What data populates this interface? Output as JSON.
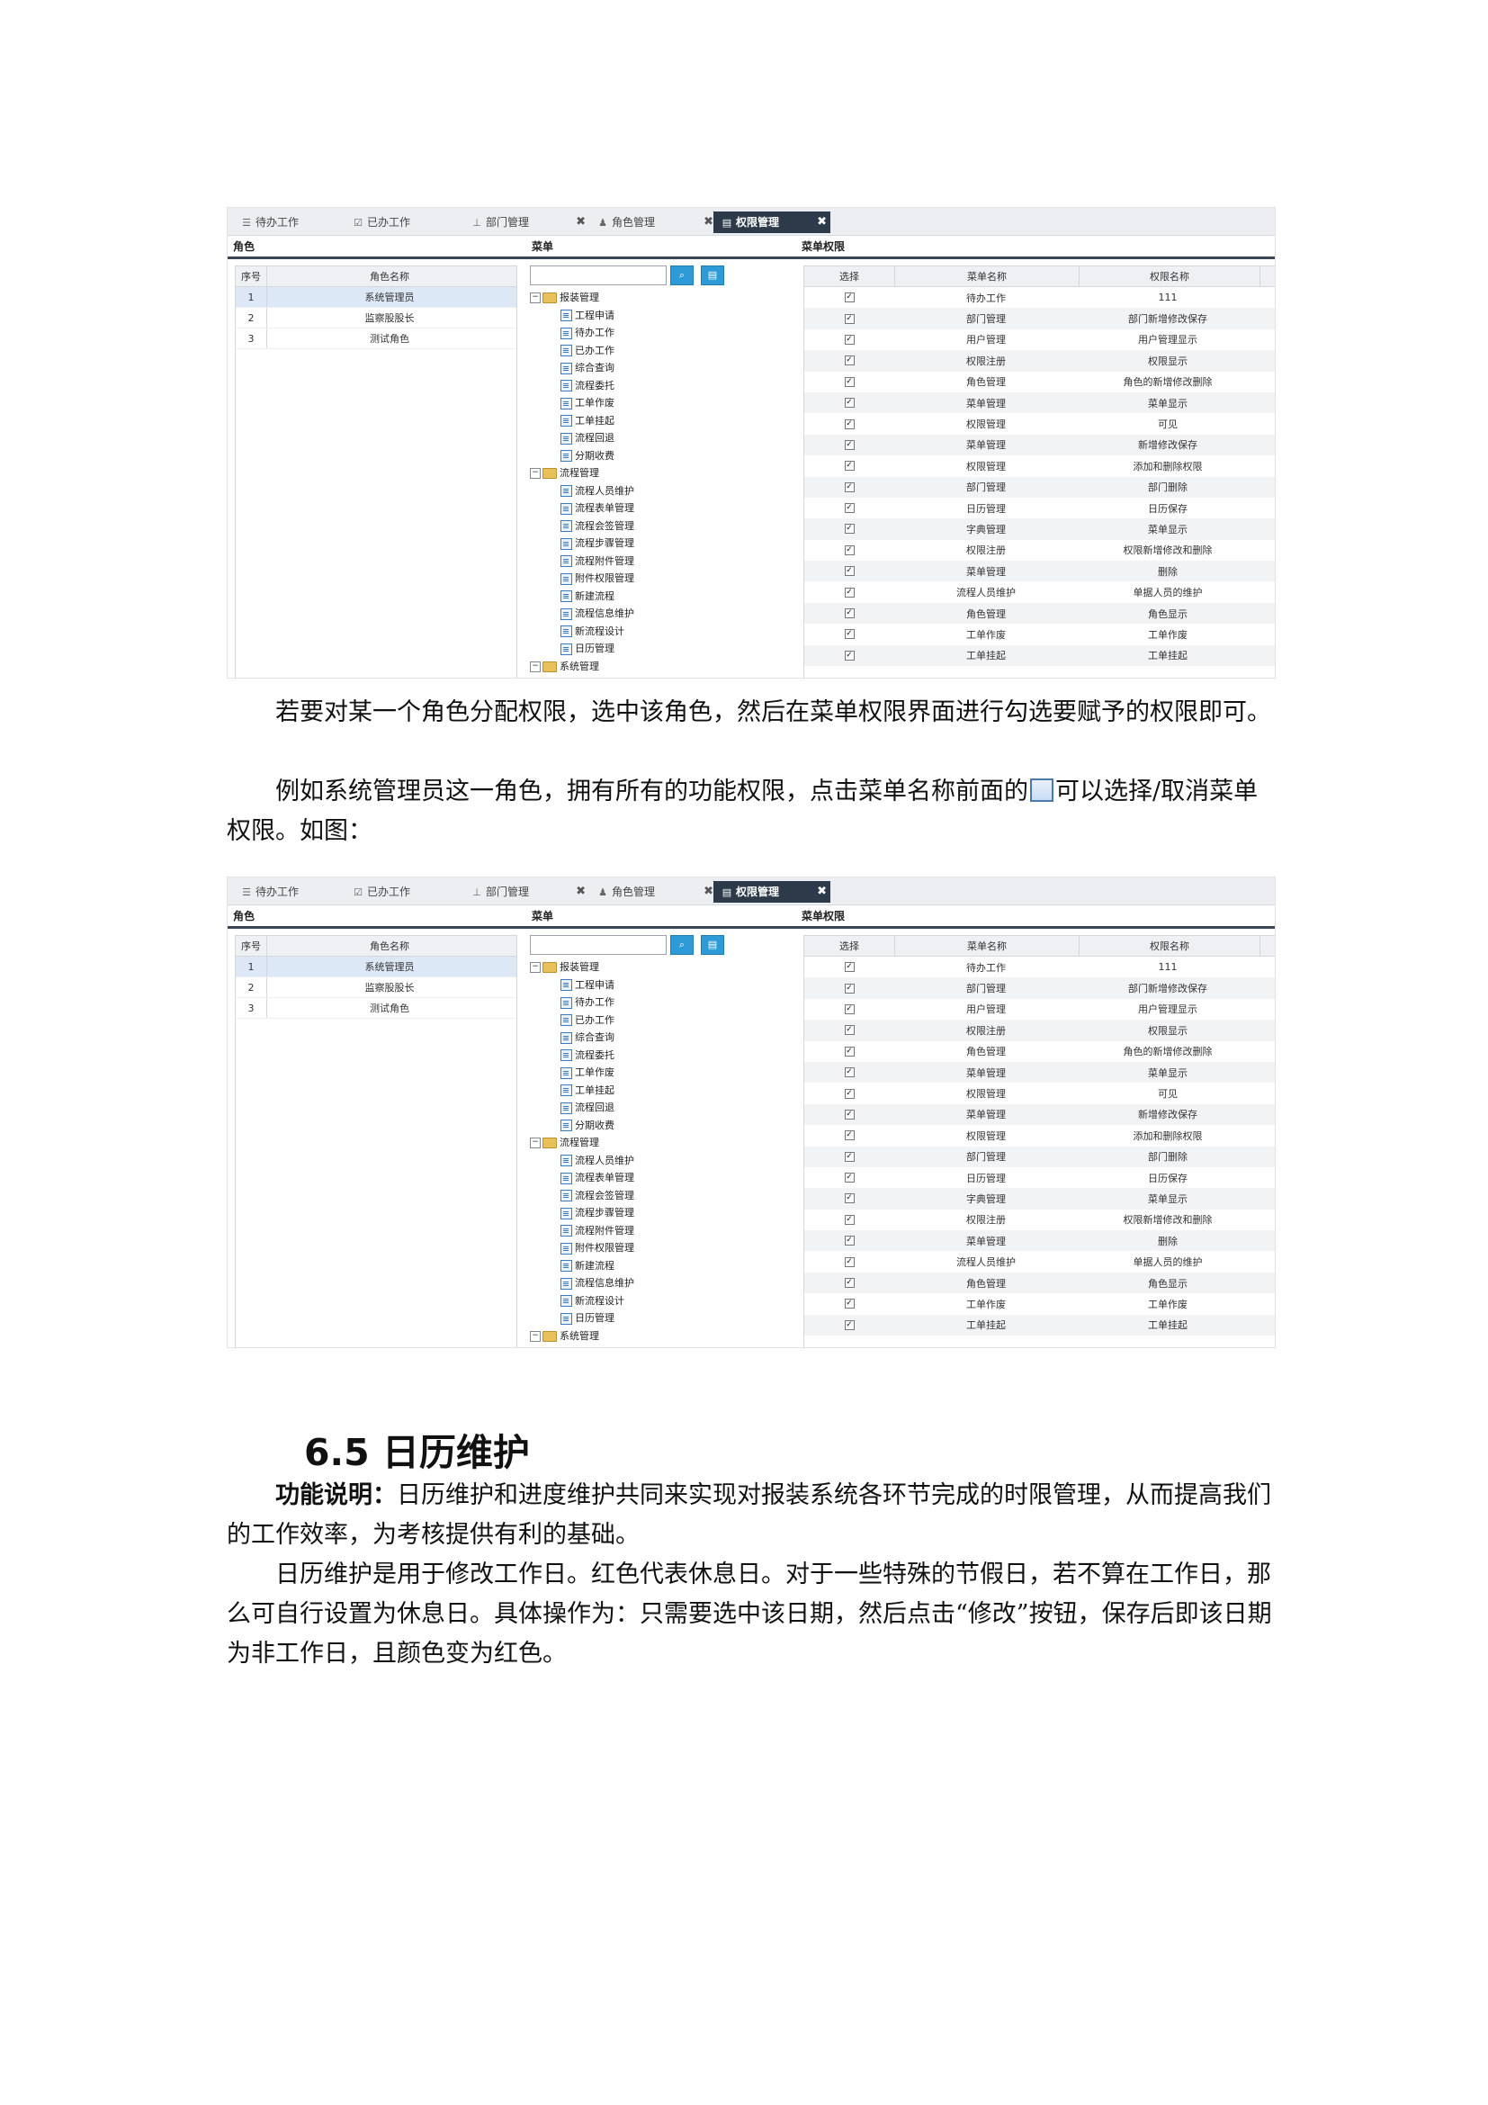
{
  "screenshot": {
    "tabs": [
      {
        "label": "待办工作",
        "icon": "list-icon",
        "closable": false,
        "active": false
      },
      {
        "label": "已办工作",
        "icon": "check-icon",
        "closable": false,
        "active": false
      },
      {
        "label": "部门管理",
        "icon": "org-chart-icon",
        "closable": true,
        "active": false
      },
      {
        "label": "角色管理",
        "icon": "person-icon",
        "closable": true,
        "active": false
      },
      {
        "label": "权限管理",
        "icon": "database-icon",
        "closable": true,
        "active": true
      }
    ],
    "close_glyph": "✖",
    "panel_headers": {
      "role": "角色",
      "menu": "菜单",
      "menu_perm": "菜单权限"
    },
    "role_table": {
      "columns": [
        "序号",
        "角色名称"
      ],
      "rows": [
        {
          "no": "1",
          "name": "系统管理员",
          "selected": true
        },
        {
          "no": "2",
          "name": "监察股股长",
          "selected": false
        },
        {
          "no": "3",
          "name": "测试角色",
          "selected": false
        }
      ]
    },
    "menu_tree": {
      "search_value": "",
      "nodes": [
        {
          "type": "folder",
          "label": "报装管理"
        },
        {
          "type": "leaf",
          "label": "工程申请"
        },
        {
          "type": "leaf",
          "label": "待办工作"
        },
        {
          "type": "leaf",
          "label": "已办工作"
        },
        {
          "type": "leaf",
          "label": "综合查询"
        },
        {
          "type": "leaf",
          "label": "流程委托"
        },
        {
          "type": "leaf",
          "label": "工单作废"
        },
        {
          "type": "leaf",
          "label": "工单挂起"
        },
        {
          "type": "leaf",
          "label": "流程回退"
        },
        {
          "type": "leaf",
          "label": "分期收费"
        },
        {
          "type": "folder",
          "label": "流程管理"
        },
        {
          "type": "leaf",
          "label": "流程人员维护"
        },
        {
          "type": "leaf",
          "label": "流程表单管理"
        },
        {
          "type": "leaf",
          "label": "流程会签管理"
        },
        {
          "type": "leaf",
          "label": "流程步骤管理"
        },
        {
          "type": "leaf",
          "label": "流程附件管理"
        },
        {
          "type": "leaf",
          "label": "附件权限管理"
        },
        {
          "type": "leaf",
          "label": "新建流程"
        },
        {
          "type": "leaf",
          "label": "流程信息维护"
        },
        {
          "type": "leaf",
          "label": "新流程设计"
        },
        {
          "type": "leaf",
          "label": "日历管理"
        },
        {
          "type": "folder",
          "label": "系统管理"
        }
      ]
    },
    "perm_table": {
      "columns": [
        "选择",
        "菜单名称",
        "权限名称"
      ],
      "rows_first": [
        {
          "menu": "待办工作",
          "perm": "111",
          "checked": true
        },
        {
          "menu": "部门管理",
          "perm": "部门新增修改保存",
          "checked": true
        },
        {
          "menu": "用户管理",
          "perm": "用户管理显示",
          "checked": true
        },
        {
          "menu": "权限注册",
          "perm": "权限显示",
          "checked": true
        },
        {
          "menu": "角色管理",
          "perm": "角色的新增修改删除",
          "checked": true
        },
        {
          "menu": "菜单管理",
          "perm": "菜单显示",
          "checked": true
        },
        {
          "menu": "权限管理",
          "perm": "可见",
          "checked": true
        },
        {
          "menu": "菜单管理",
          "perm": "新增修改保存",
          "checked": true
        },
        {
          "menu": "权限管理",
          "perm": "添加和删除权限",
          "checked": true
        },
        {
          "menu": "部门管理",
          "perm": "部门删除",
          "checked": true
        },
        {
          "menu": "日历管理",
          "perm": "日历保存",
          "checked": true
        },
        {
          "menu": "字典管理",
          "perm": "菜单显示",
          "checked": true
        },
        {
          "menu": "权限注册",
          "perm": "权限新增修改和删除",
          "checked": true
        },
        {
          "menu": "菜单管理",
          "perm": "删除",
          "checked": true
        },
        {
          "menu": "流程人员维护",
          "perm": "单据人员的维护",
          "checked": true
        },
        {
          "menu": "角色管理",
          "perm": "角色显示",
          "checked": true
        },
        {
          "menu": "工单作废",
          "perm": "工单作废",
          "checked": true
        },
        {
          "menu": "工单挂起",
          "perm": "工单挂起",
          "checked": true
        }
      ],
      "rows_second": [
        {
          "menu": "待办工作",
          "perm": "111",
          "checked": true
        },
        {
          "menu": "部门管理",
          "perm": "部门新增修改保存",
          "checked": true
        },
        {
          "menu": "用户管理",
          "perm": "用户管理显示",
          "checked": true
        },
        {
          "menu": "权限注册",
          "perm": "权限显示",
          "checked": true
        },
        {
          "menu": "角色管理",
          "perm": "角色的新增修改删除",
          "checked": true
        },
        {
          "menu": "菜单管理",
          "perm": "菜单显示",
          "checked": true
        },
        {
          "menu": "权限管理",
          "perm": "可见",
          "checked": true
        },
        {
          "menu": "菜单管理",
          "perm": "新增修改保存",
          "checked": true
        },
        {
          "menu": "权限管理",
          "perm": "添加和删除权限",
          "checked": true
        },
        {
          "menu": "部门管理",
          "perm": "部门删除",
          "checked": true
        },
        {
          "menu": "日历管理",
          "perm": "日历保存",
          "checked": true
        },
        {
          "menu": "字典管理",
          "perm": "菜单显示",
          "checked": true
        },
        {
          "menu": "权限注册",
          "perm": "权限新增修改和删除",
          "checked": true
        },
        {
          "menu": "菜单管理",
          "perm": "删除",
          "checked": true
        },
        {
          "menu": "流程人员维护",
          "perm": "单据人员的维护",
          "checked": true
        },
        {
          "menu": "角色管理",
          "perm": "角色显示",
          "checked": true
        },
        {
          "menu": "工单作废",
          "perm": "工单作废",
          "checked": true
        },
        {
          "menu": "工单挂起",
          "perm": "工单挂起",
          "checked": true
        }
      ]
    }
  },
  "text": {
    "para1": "若要对某一个角色分配权限，选中该角色，然后在菜单权限界面进行勾选要赋予的权限即可。",
    "para2_before": "例如系统管理员这一角色，拥有所有的功能权限，点击菜单名称前面的",
    "para2_after": "可以选择/取消菜单权限。如图：",
    "section_title": "6.5 日历维护",
    "para3_label": "功能说明：",
    "para3_body": "日历维护和进度维护共同来实现对报装系统各环节完成的时限管理，从而提高我们的工作效率，为考核提供有利的基础。",
    "para4": "日历维护是用于修改工作日。红色代表休息日。对于一些特殊的节假日，若不算在工作日，那么可自行设置为休息日。具体操作为：只需要选中该日期，然后点击“修改”按钮，保存后即该日期为非工作日，且颜色变为红色。"
  }
}
